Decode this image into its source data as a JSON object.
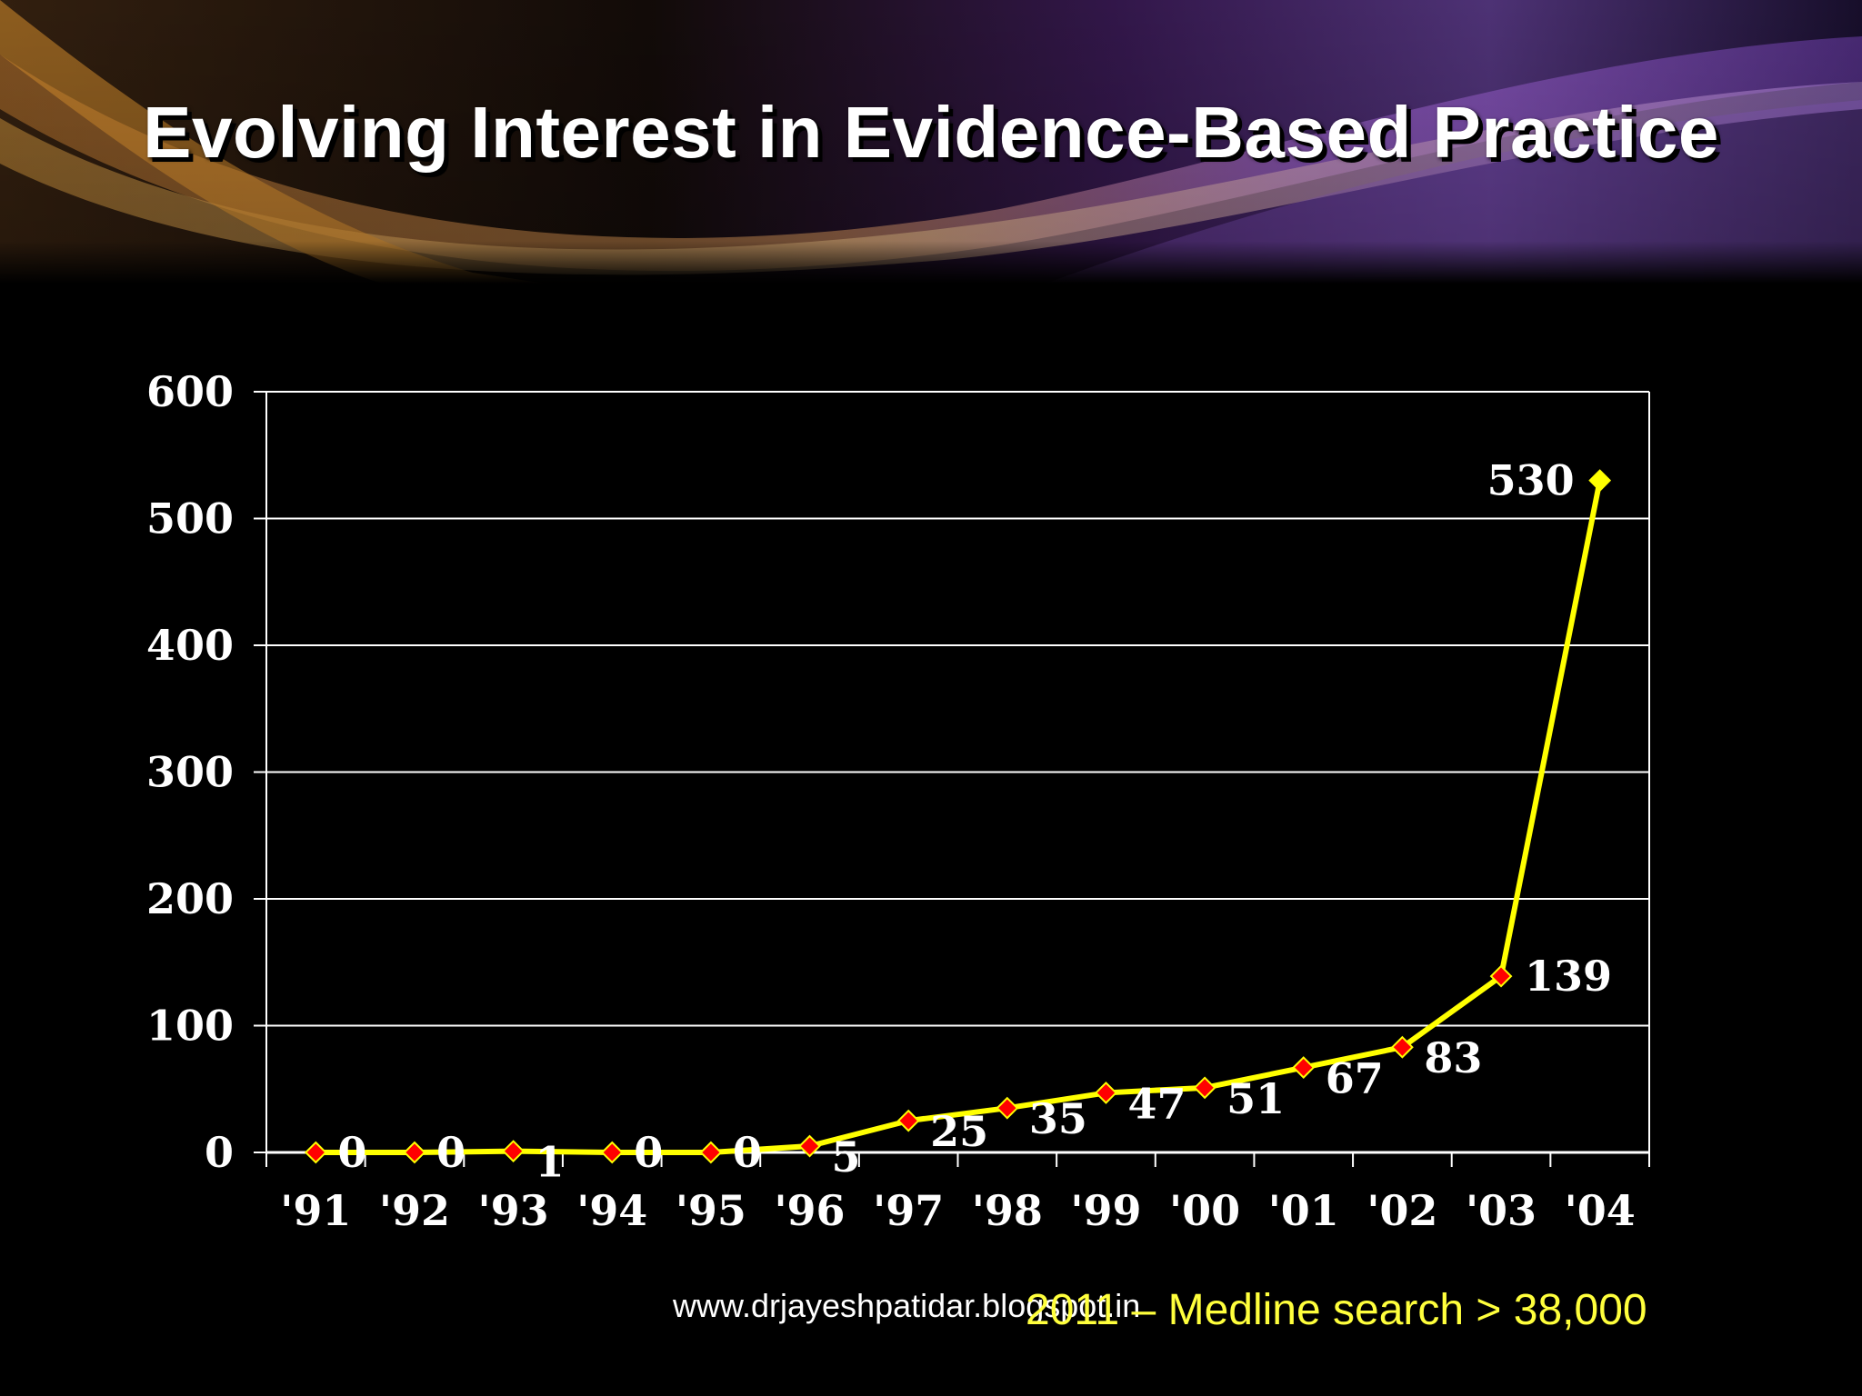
{
  "slide": {
    "title": "Evolving Interest in Evidence-Based Practice",
    "note": "2011 – Medline search > 38,000",
    "watermark": "www.drjayeshpatidar.blogspot.in"
  },
  "colors": {
    "background": "#000000",
    "line": "#ffff00",
    "marker": "#ff0000",
    "last_marker": "#ffff00",
    "grid": "#ffffff",
    "note_text": "#ffff3c"
  },
  "chart_data": {
    "type": "line",
    "categories": [
      "'91",
      "'92",
      "'93",
      "'94",
      "'95",
      "'96",
      "'97",
      "'98",
      "'99",
      "'00",
      "'01",
      "'02",
      "'03",
      "'04"
    ],
    "series": [
      {
        "values": [
          0,
          0,
          1,
          0,
          0,
          5,
          25,
          35,
          47,
          51,
          67,
          83,
          139,
          530
        ]
      }
    ],
    "data_labels": [
      "0",
      "0",
      "1",
      "0",
      "0",
      "5",
      "25",
      "35",
      "47",
      "51",
      "67",
      "83",
      "139",
      "530"
    ],
    "y_ticks": [
      "0",
      "100",
      "200",
      "300",
      "400",
      "500",
      "600"
    ],
    "ylim": [
      0,
      600
    ],
    "grid": true,
    "legend": "none"
  }
}
